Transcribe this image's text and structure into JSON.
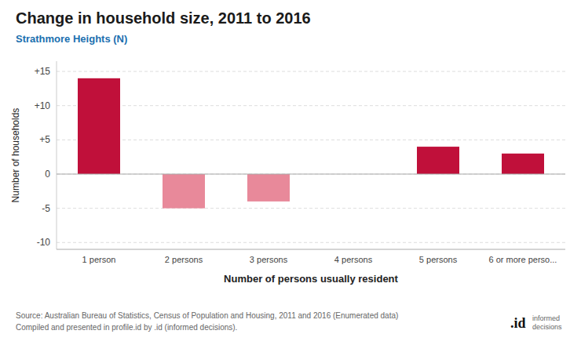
{
  "chart_data": {
    "type": "bar",
    "title": "Change in household size, 2011 to 2016",
    "subtitle": "Strathmore Heights (N)",
    "categories": [
      "1 person",
      "2 persons",
      "3 persons",
      "4 persons",
      "5 persons",
      "6 or more perso..."
    ],
    "values": [
      14,
      -5,
      -4,
      0,
      4,
      3
    ],
    "colors": [
      "#C0103A",
      "#E8899A",
      "#E8899A",
      "#C0103A",
      "#C0103A",
      "#C0103A"
    ],
    "x_label": "Number of persons usually resident",
    "y_label": "Number of households",
    "ylim": [
      -11,
      16.5
    ],
    "yticks": [
      -10,
      -5,
      0,
      {
        "value": 5,
        "label": "+5"
      },
      {
        "value": 10,
        "label": "+10"
      },
      {
        "value": 15,
        "label": "+15"
      }
    ],
    "grid": true,
    "annotations": [
      "Source: Australian Bureau of Statistics, Census of Population and Housing, 2011 and 2016 (Enumerated data)",
      "Compiled and presented in profile.id by .id (informed decisions).",
      ".id",
      "informed\ndecisions"
    ]
  }
}
